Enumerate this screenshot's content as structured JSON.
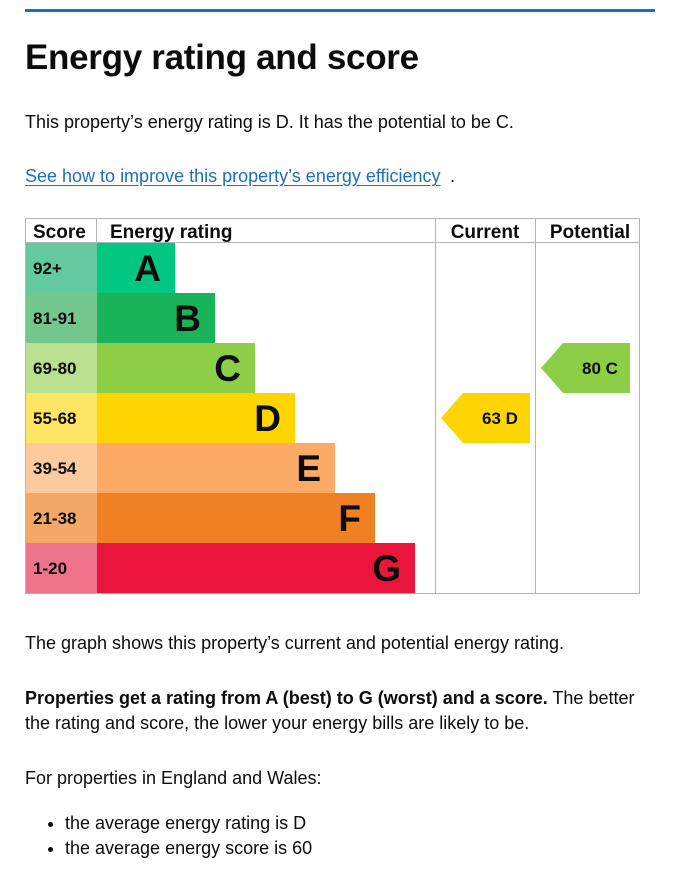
{
  "page": {
    "title": "Energy rating and score",
    "intro": "This property’s energy rating is D. It has the potential to be C.",
    "improve_link": "See how to improve this property’s energy efficiency",
    "improve_link_suffix": ".",
    "graph_note": "The graph shows this property’s current and potential energy rating.",
    "rating_note_bold": "Properties get a rating from A (best) to G (worst) and a score.",
    "rating_note_rest": " The better the rating and score, the lower your energy bills are likely to be.",
    "avg_intro": "For properties in England and Wales:",
    "avg_items": [
      "the average energy rating is D",
      "the average energy score is 60"
    ]
  },
  "colors": {
    "link": "#1d70b8",
    "rule": "#1d70b8",
    "text": "#0b0c0c",
    "grid": "#b1b4b6"
  },
  "chart_data": {
    "type": "bar",
    "headers": {
      "score": "Score",
      "rating": "Energy rating",
      "current": "Current",
      "potential": "Potential"
    },
    "bands": [
      {
        "letter": "A",
        "range": "92+",
        "bar_color": "#00c781",
        "score_bg": "#64c9a0"
      },
      {
        "letter": "B",
        "range": "81-91",
        "bar_color": "#19b459",
        "score_bg": "#74c78c"
      },
      {
        "letter": "C",
        "range": "69-80",
        "bar_color": "#8dce46",
        "score_bg": "#b9e08e"
      },
      {
        "letter": "D",
        "range": "55-68",
        "bar_color": "#ffd500",
        "score_bg": "#ffe564"
      },
      {
        "letter": "E",
        "range": "39-54",
        "bar_color": "#fcaa65",
        "score_bg": "#fdca9e"
      },
      {
        "letter": "F",
        "range": "21-38",
        "bar_color": "#ef8023",
        "score_bg": "#f4a866"
      },
      {
        "letter": "G",
        "range": "1-20",
        "bar_color": "#e9153b",
        "score_bg": "#f0738c"
      }
    ],
    "current": {
      "score": 63,
      "letter": "D",
      "label": "63  D",
      "color": "#ffd500"
    },
    "potential": {
      "score": 80,
      "letter": "C",
      "label": "80  C",
      "color": "#8dce46"
    }
  }
}
